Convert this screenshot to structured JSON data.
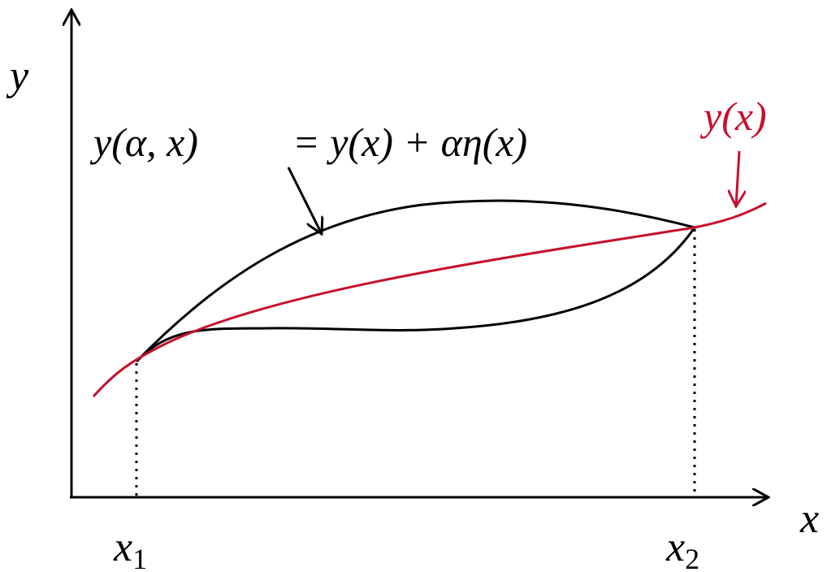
{
  "axes": {
    "x_label": "x",
    "y_label": "y"
  },
  "points": [
    {
      "label": "x",
      "subscript": "1"
    },
    {
      "label": "x",
      "subscript": "2"
    }
  ],
  "annotations": {
    "varied_path": "y(α, x)",
    "varied_formula": "= y(x) + αη(x)",
    "true_path": "y(x)"
  }
}
